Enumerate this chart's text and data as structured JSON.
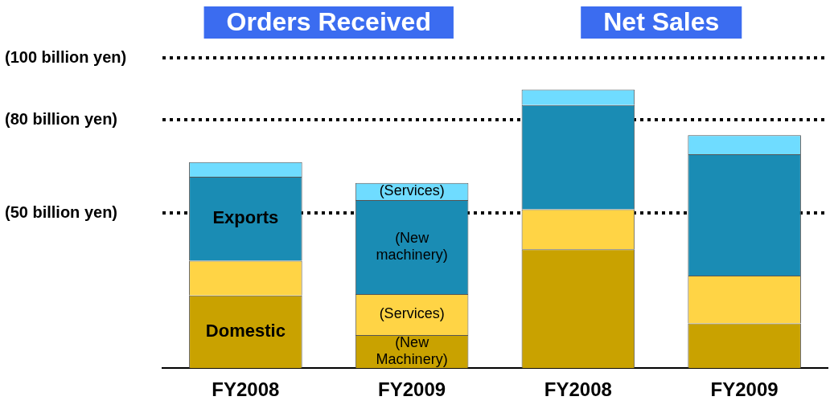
{
  "chart_data": {
    "type": "bar",
    "stacked": true,
    "categories": [
      "FY2008",
      "FY2009",
      "FY2008",
      "FY2009"
    ],
    "series": [
      {
        "color": "#c9a200",
        "values": [
          23.4,
          10.7,
          38.3,
          14.4
        ]
      },
      {
        "color": "#ffd445",
        "values": [
          11.2,
          13.2,
          12.9,
          15.4
        ]
      },
      {
        "color": "#1a8cb4",
        "values": [
          27.1,
          30.3,
          33.6,
          39.1
        ]
      },
      {
        "color": "#6fdcff",
        "values": [
          4.7,
          5.5,
          5.0,
          6.2
        ]
      }
    ],
    "ylim": [
      0,
      100
    ],
    "yticks": [
      {
        "value": 50,
        "label": "(50 billion yen)"
      },
      {
        "value": 80,
        "label": "(80 billion yen)"
      },
      {
        "value": 100,
        "label": "(100 billion yen)"
      }
    ],
    "grid": "y",
    "legend": false,
    "annotations": [
      "Orders Received",
      "Net Sales",
      "Exports",
      "Domestic",
      "(Services)",
      "(New\nmachinery)",
      "(Services)",
      "(New\nMachinery)"
    ]
  }
}
